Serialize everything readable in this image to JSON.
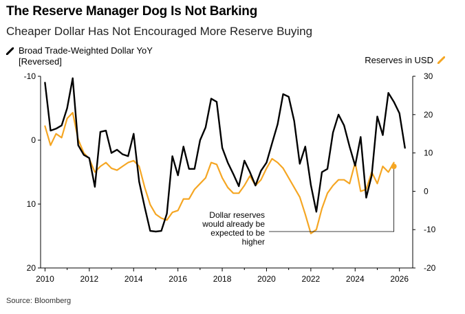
{
  "title": "The Reserve Manager Dog Is Not Barking",
  "subtitle": "Cheaper Dollar Has Not Encouraged More Reserve Buying",
  "source": "Source: Bloomberg",
  "colors": {
    "dollar": "#000000",
    "reserves": "#f5a623"
  },
  "chart_data": {
    "type": "line",
    "title": "The Reserve Manager Dog Is Not Barking",
    "subtitle": "Cheaper Dollar Has Not Encouraged More Reserve Buying",
    "x_ticks": [
      "2010",
      "2012",
      "2014",
      "2016",
      "2018",
      "2020",
      "2022",
      "2024",
      "2026"
    ],
    "xlim": [
      2009.8,
      2026.6
    ],
    "left_axis": {
      "label": "Broad Trade-Weighted Dollar YoY [Reversed]",
      "reversed": true,
      "ylim": [
        -10,
        20
      ],
      "ticks": [
        "-10",
        "0",
        "10",
        "20"
      ]
    },
    "right_axis": {
      "label": "Reserves in USD",
      "ylim": [
        -20,
        30
      ],
      "ticks": [
        "30",
        "20",
        "10",
        "0",
        "-10",
        "-20"
      ]
    },
    "annotation": {
      "lines": [
        "Dollar reserves",
        "would already be",
        "expected to be",
        "higher"
      ],
      "target": [
        2025.75,
        6.5
      ]
    },
    "series": [
      {
        "name": "Broad Trade-Weighted Dollar YoY",
        "axis": "left",
        "color": "#000000",
        "x": [
          2010.0,
          2010.25,
          2010.5,
          2010.75,
          2011.0,
          2011.25,
          2011.5,
          2011.75,
          2012.0,
          2012.25,
          2012.5,
          2012.75,
          2013.0,
          2013.25,
          2013.5,
          2013.75,
          2014.0,
          2014.25,
          2014.5,
          2014.75,
          2015.0,
          2015.25,
          2015.5,
          2015.75,
          2016.0,
          2016.25,
          2016.5,
          2016.75,
          2017.0,
          2017.25,
          2017.5,
          2017.75,
          2018.0,
          2018.25,
          2018.5,
          2018.75,
          2019.0,
          2019.25,
          2019.5,
          2019.75,
          2020.0,
          2020.25,
          2020.5,
          2020.75,
          2021.0,
          2021.25,
          2021.5,
          2021.75,
          2022.0,
          2022.25,
          2022.5,
          2022.75,
          2023.0,
          2023.25,
          2023.5,
          2023.75,
          2024.0,
          2024.25,
          2024.5,
          2024.75,
          2025.0,
          2025.25,
          2025.5,
          2025.75,
          2026.0,
          2026.25
        ],
        "values": [
          -9.0,
          -1.5,
          -1.8,
          -2.3,
          -5.0,
          -9.7,
          0.8,
          2.3,
          2.8,
          7.3,
          -1.3,
          -1.5,
          2.0,
          1.5,
          2.2,
          2.5,
          -1.0,
          6.5,
          10.5,
          14.2,
          14.3,
          14.2,
          11.5,
          2.5,
          5.5,
          1.0,
          4.5,
          4.5,
          0.0,
          -2.0,
          -6.5,
          -6.0,
          1.2,
          3.5,
          5.3,
          7.2,
          3.2,
          5.0,
          7.1,
          4.8,
          3.5,
          0.5,
          -2.5,
          -7.2,
          -6.8,
          -3.0,
          3.7,
          1.0,
          7.0,
          11.2,
          5.0,
          4.5,
          -1.2,
          -4.0,
          -2.3,
          1.0,
          4.0,
          -0.5,
          9.0,
          5.5,
          -3.7,
          -0.8,
          -7.4,
          -6.0,
          -4.2,
          1.2
        ]
      },
      {
        "name": "Reserves in USD",
        "axis": "right",
        "color": "#f5a623",
        "x": [
          2010.0,
          2010.25,
          2010.5,
          2010.75,
          2011.0,
          2011.25,
          2011.5,
          2011.75,
          2012.0,
          2012.25,
          2012.5,
          2012.75,
          2013.0,
          2013.25,
          2013.5,
          2013.75,
          2014.0,
          2014.25,
          2014.5,
          2014.75,
          2015.0,
          2015.25,
          2015.5,
          2015.75,
          2016.0,
          2016.25,
          2016.5,
          2016.75,
          2017.0,
          2017.25,
          2017.5,
          2017.75,
          2018.0,
          2018.25,
          2018.5,
          2018.75,
          2019.0,
          2019.25,
          2019.5,
          2019.75,
          2020.0,
          2020.25,
          2020.5,
          2020.75,
          2021.0,
          2021.25,
          2021.5,
          2021.75,
          2022.0,
          2022.25,
          2022.5,
          2022.75,
          2023.0,
          2023.25,
          2023.5,
          2023.75,
          2024.0,
          2024.25,
          2024.5,
          2024.75,
          2025.0,
          2025.25,
          2025.5,
          2025.75
        ],
        "values": [
          17.0,
          12.0,
          15.0,
          14.0,
          19.0,
          20.5,
          13.5,
          10.0,
          8.5,
          5.0,
          6.5,
          7.5,
          6.0,
          5.5,
          6.5,
          7.5,
          8.0,
          6.5,
          1.0,
          -3.5,
          -6.0,
          -7.0,
          -7.5,
          -5.5,
          -5.0,
          -2.0,
          -2.0,
          0.5,
          2.0,
          3.5,
          7.5,
          7.0,
          3.5,
          1.0,
          -0.5,
          -0.5,
          1.5,
          4.0,
          1.5,
          3.0,
          6.0,
          8.5,
          7.5,
          6.0,
          3.5,
          1.0,
          -1.5,
          -6.0,
          -11.0,
          -10.0,
          -4.5,
          -0.5,
          1.5,
          3.0,
          3.0,
          2.0,
          7.5,
          0.0,
          0.5,
          5.0,
          2.0,
          6.5,
          5.0,
          7.5
        ]
      }
    ]
  }
}
